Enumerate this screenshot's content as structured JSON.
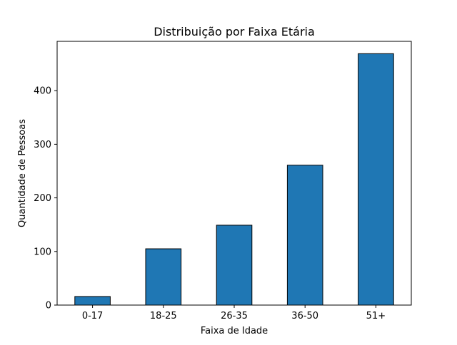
{
  "chart_data": {
    "type": "bar",
    "title": "Distribuição por Faixa Etária",
    "xlabel": "Faixa de Idade",
    "ylabel": "Quantidade de Pessoas",
    "categories": [
      "0-17",
      "18-25",
      "26-35",
      "36-50",
      "51+"
    ],
    "values": [
      16,
      105,
      149,
      261,
      469
    ],
    "ylim": [
      0,
      492
    ],
    "yticks": [
      0,
      100,
      200,
      300,
      400
    ],
    "grid": false,
    "bar_color": "#1f77b4",
    "bar_edge_color": "#000000"
  }
}
